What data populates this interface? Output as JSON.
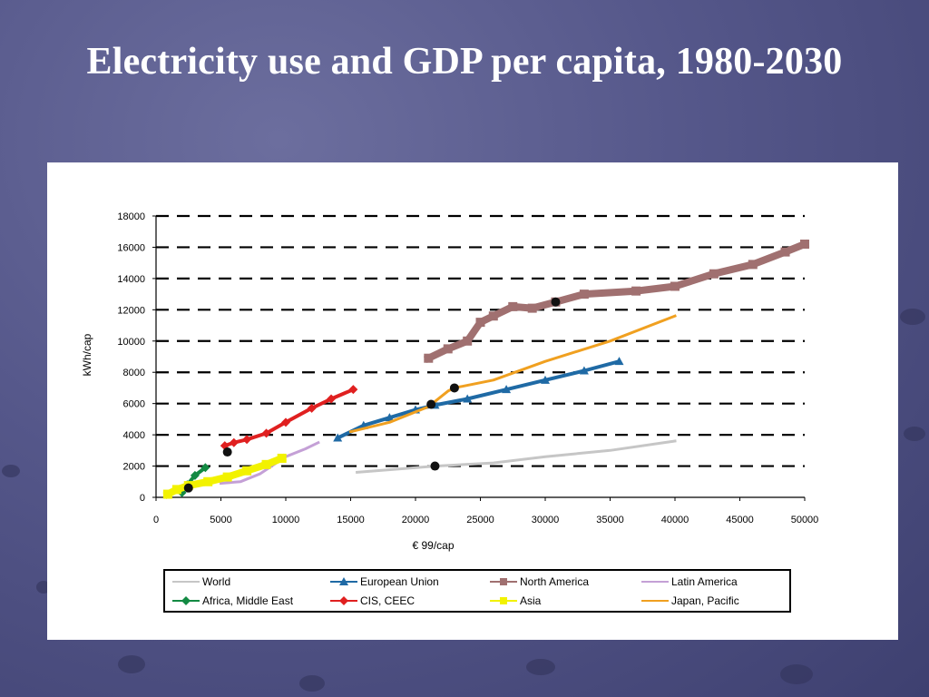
{
  "title": "Electricity use and GDP per capita, 1980-2030",
  "chart_data": {
    "type": "line",
    "xlabel": "€ 99/cap",
    "ylabel": "kWh/cap",
    "xlim": [
      0,
      50000
    ],
    "ylim": [
      0,
      18000
    ],
    "x_ticks": [
      "0",
      "5000",
      "10000",
      "15000",
      "20000",
      "25000",
      "30000",
      "35000",
      "40000",
      "45000",
      "50000"
    ],
    "y_ticks": [
      "0",
      "2000",
      "4000",
      "6000",
      "8000",
      "10000",
      "12000",
      "14000",
      "16000",
      "18000"
    ],
    "grid": "horizontal dashed",
    "legend_position": "bottom",
    "series": [
      {
        "name": "World",
        "color": "#c6c6c6",
        "marker": "line",
        "points": [
          [
            15500,
            1600
          ],
          [
            21500,
            2000
          ],
          [
            26000,
            2200
          ],
          [
            30000,
            2600
          ],
          [
            35000,
            3000
          ],
          [
            40000,
            3600
          ]
        ]
      },
      {
        "name": "European Union",
        "color": "#1f6aa5",
        "marker": "triangle",
        "points": [
          [
            14000,
            3800
          ],
          [
            16000,
            4600
          ],
          [
            18000,
            5100
          ],
          [
            20000,
            5600
          ],
          [
            21500,
            5900
          ],
          [
            24000,
            6300
          ],
          [
            27000,
            6900
          ],
          [
            30000,
            7500
          ],
          [
            33000,
            8100
          ],
          [
            35700,
            8700
          ]
        ]
      },
      {
        "name": "North America",
        "color": "#a07070",
        "marker": "square",
        "points": [
          [
            21000,
            8900
          ],
          [
            22500,
            9500
          ],
          [
            24000,
            10000
          ],
          [
            25000,
            11200
          ],
          [
            26000,
            11600
          ],
          [
            27500,
            12200
          ],
          [
            29000,
            12100
          ],
          [
            30800,
            12500
          ],
          [
            33000,
            13000
          ],
          [
            37000,
            13200
          ],
          [
            40000,
            13500
          ],
          [
            43000,
            14300
          ],
          [
            46000,
            14900
          ],
          [
            48500,
            15700
          ],
          [
            50000,
            16200
          ]
        ]
      },
      {
        "name": "Latin America",
        "color": "#c4a0d6",
        "marker": "line",
        "points": [
          [
            5000,
            900
          ],
          [
            6500,
            1000
          ],
          [
            8000,
            1500
          ],
          [
            10000,
            2600
          ],
          [
            11500,
            3100
          ],
          [
            12500,
            3500
          ]
        ]
      },
      {
        "name": "Africa, Middle East",
        "color": "#138a43",
        "marker": "diamond",
        "points": [
          [
            2000,
            300
          ],
          [
            2400,
            800
          ],
          [
            3000,
            1400
          ],
          [
            3800,
            1900
          ]
        ]
      },
      {
        "name": "CIS, CEEC",
        "color": "#e02020",
        "marker": "diamond",
        "points": [
          [
            5300,
            3300
          ],
          [
            6000,
            3500
          ],
          [
            7000,
            3700
          ],
          [
            8500,
            4100
          ],
          [
            10000,
            4800
          ],
          [
            12000,
            5700
          ],
          [
            13500,
            6300
          ],
          [
            15200,
            6900
          ]
        ]
      },
      {
        "name": "Asia",
        "color": "#f2f200",
        "marker": "square",
        "points": [
          [
            900,
            200
          ],
          [
            1600,
            500
          ],
          [
            2500,
            750
          ],
          [
            4000,
            1000
          ],
          [
            5500,
            1300
          ],
          [
            7000,
            1700
          ],
          [
            8500,
            2100
          ],
          [
            9700,
            2500
          ]
        ]
      },
      {
        "name": "Japan, Pacific",
        "color": "#f0a020",
        "marker": "line",
        "points": [
          [
            15000,
            4200
          ],
          [
            18000,
            4800
          ],
          [
            21000,
            5800
          ],
          [
            22500,
            6800
          ],
          [
            23000,
            7000
          ],
          [
            26000,
            7500
          ],
          [
            30000,
            8700
          ],
          [
            35000,
            10000
          ],
          [
            40000,
            11600
          ]
        ]
      }
    ],
    "highlight_points": [
      [
        21500,
        2000
      ],
      [
        21200,
        5950
      ],
      [
        30800,
        12500
      ],
      [
        23000,
        7000
      ],
      [
        5500,
        2900
      ],
      [
        2500,
        600
      ]
    ]
  }
}
